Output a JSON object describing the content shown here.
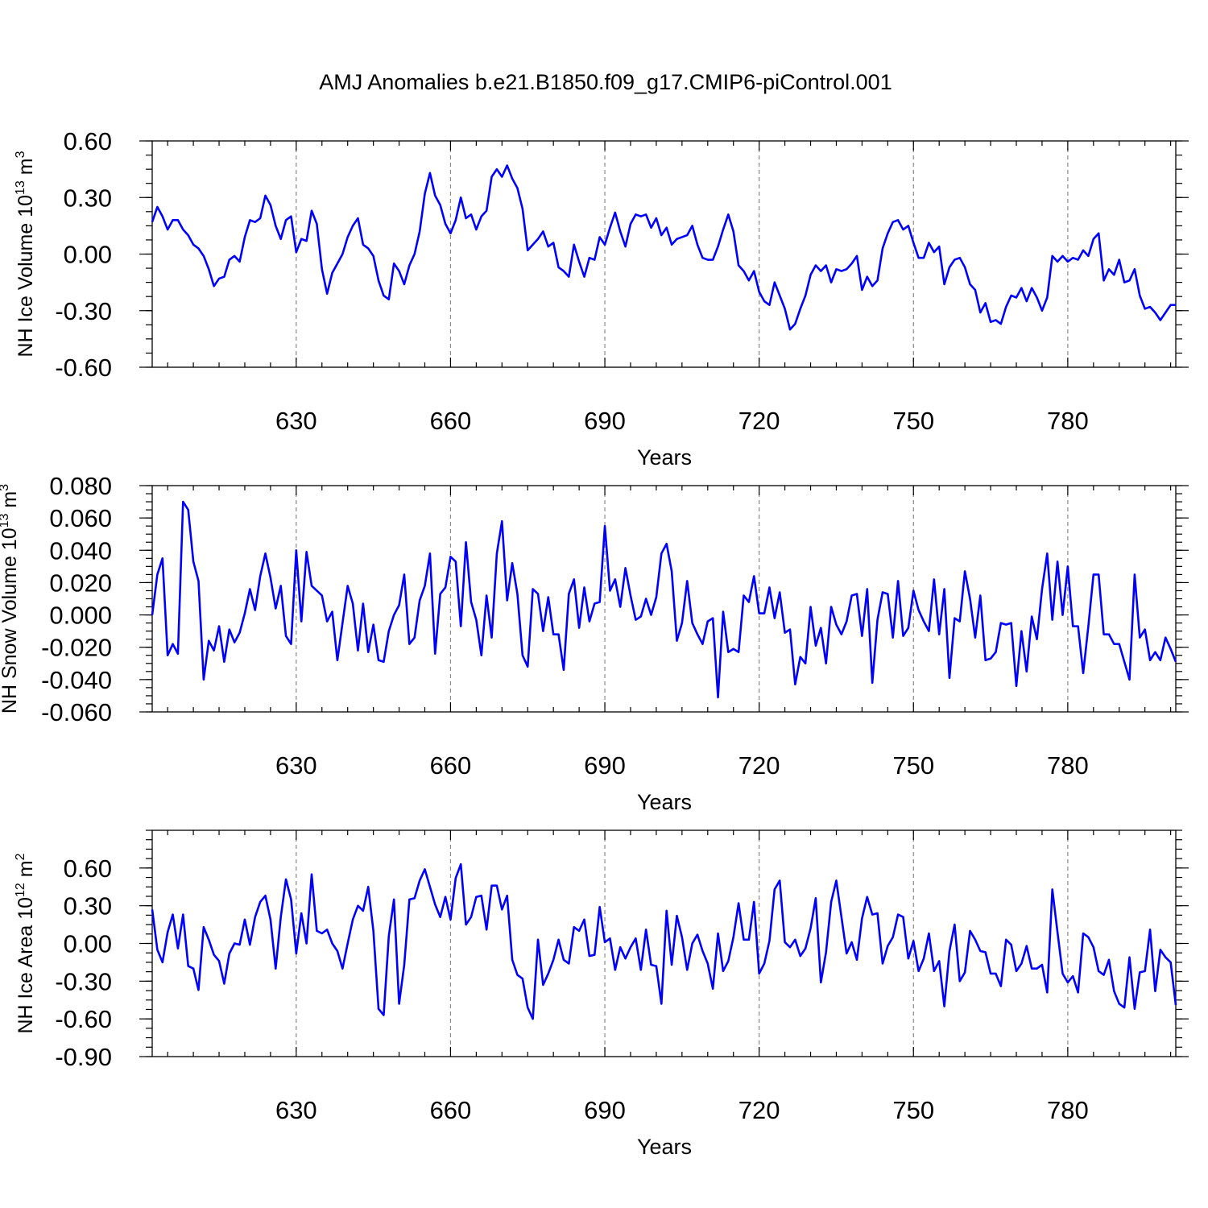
{
  "title": "AMJ Anomalies b.e21.B1850.f09_g17.CMIP6-piControl.001",
  "colors": {
    "line": "#0000ff",
    "grid": "#8a8a8a",
    "axis": "#000000"
  },
  "chart_data": [
    {
      "type": "line",
      "ylabel_main": "NH Ice Volume 10",
      "ylabel_exp": "13",
      "ylabel_unit": " m",
      "ylabel_unit_exp": "3",
      "xlabel": "Years",
      "xlim": [
        602,
        801
      ],
      "ylim": [
        -0.6,
        0.6
      ],
      "xticks": [
        630,
        660,
        690,
        720,
        750,
        780
      ],
      "yticks": [
        0.6,
        0.3,
        0.0,
        -0.3,
        -0.6
      ],
      "yticklabels": [
        "0.60",
        "0.30",
        "0.00",
        "-0.30",
        "-0.60"
      ],
      "yminor": 0.075,
      "series": [
        {
          "x0": 602,
          "values": [
            0.17,
            0.25,
            0.2,
            0.13,
            0.18,
            0.18,
            0.13,
            0.1,
            0.05,
            0.03,
            -0.01,
            -0.08,
            -0.17,
            -0.13,
            -0.12,
            -0.03,
            -0.01,
            -0.04,
            0.09,
            0.18,
            0.17,
            0.19,
            0.31,
            0.26,
            0.15,
            0.08,
            0.18,
            0.2,
            0.01,
            0.08,
            0.07,
            0.23,
            0.16,
            -0.08,
            -0.21,
            -0.1,
            -0.05,
            0.0,
            0.09,
            0.15,
            0.19,
            0.05,
            0.03,
            -0.01,
            -0.14,
            -0.22,
            -0.24,
            -0.05,
            -0.09,
            -0.16,
            -0.06,
            0.0,
            0.12,
            0.32,
            0.43,
            0.31,
            0.26,
            0.16,
            0.11,
            0.18,
            0.3,
            0.19,
            0.21,
            0.13,
            0.2,
            0.23,
            0.41,
            0.45,
            0.41,
            0.47,
            0.4,
            0.35,
            0.24,
            0.02,
            0.05,
            0.08,
            0.12,
            0.04,
            0.06,
            -0.07,
            -0.09,
            -0.12,
            0.05,
            -0.04,
            -0.12,
            -0.02,
            -0.03,
            0.09,
            0.05,
            0.14,
            0.22,
            0.12,
            0.04,
            0.16,
            0.21,
            0.2,
            0.21,
            0.14,
            0.19,
            0.1,
            0.14,
            0.05,
            0.08,
            0.09,
            0.1,
            0.15,
            0.05,
            -0.02,
            -0.03,
            -0.03,
            0.04,
            0.13,
            0.21,
            0.12,
            -0.06,
            -0.09,
            -0.14,
            -0.09,
            -0.2,
            -0.25,
            -0.27,
            -0.15,
            -0.22,
            -0.29,
            -0.4,
            -0.37,
            -0.29,
            -0.22,
            -0.11,
            -0.06,
            -0.09,
            -0.06,
            -0.15,
            -0.08,
            -0.09,
            -0.08,
            -0.05,
            -0.01,
            -0.19,
            -0.12,
            -0.17,
            -0.14,
            0.03,
            0.11,
            0.17,
            0.18,
            0.13,
            0.15,
            0.06,
            -0.02,
            -0.02,
            0.06,
            0.01,
            0.04,
            -0.16,
            -0.07,
            -0.03,
            -0.02,
            -0.07,
            -0.16,
            -0.19,
            -0.31,
            -0.26,
            -0.36,
            -0.35,
            -0.37,
            -0.28,
            -0.22,
            -0.23,
            -0.18,
            -0.25,
            -0.18,
            -0.23,
            -0.3,
            -0.23,
            -0.01,
            -0.04,
            -0.01,
            -0.04,
            -0.02,
            -0.03,
            0.02,
            -0.01,
            0.08,
            0.11,
            -0.14,
            -0.08,
            -0.11,
            -0.03,
            -0.15,
            -0.14,
            -0.08,
            -0.22,
            -0.29,
            -0.28,
            -0.31,
            -0.35,
            -0.31,
            -0.27,
            -0.27
          ]
        }
      ]
    },
    {
      "type": "line",
      "ylabel_main": "NH Snow Volume 10",
      "ylabel_exp": "13",
      "ylabel_unit": " m",
      "ylabel_unit_exp": "3",
      "xlabel": "Years",
      "xlim": [
        602,
        801
      ],
      "ylim": [
        -0.06,
        0.08
      ],
      "xticks": [
        630,
        660,
        690,
        720,
        750,
        780
      ],
      "yticks": [
        0.08,
        0.06,
        0.04,
        0.02,
        0.0,
        -0.02,
        -0.04,
        -0.06
      ],
      "yticklabels": [
        "0.080",
        "0.060",
        "0.040",
        "0.020",
        "0.000",
        "-0.020",
        "-0.040",
        "-0.060"
      ],
      "yminor": 0.005,
      "series": [
        {
          "x0": 602,
          "values": [
            0.0,
            0.025,
            0.035,
            -0.025,
            -0.018,
            -0.024,
            0.07,
            0.065,
            0.033,
            0.021,
            -0.04,
            -0.016,
            -0.022,
            -0.007,
            -0.029,
            -0.009,
            -0.017,
            -0.011,
            0.001,
            0.016,
            0.003,
            0.024,
            0.038,
            0.023,
            0.004,
            0.018,
            -0.013,
            -0.018,
            0.04,
            -0.004,
            0.039,
            0.018,
            0.015,
            0.012,
            -0.004,
            0.002,
            -0.028,
            -0.005,
            0.018,
            0.007,
            -0.022,
            0.007,
            -0.023,
            -0.006,
            -0.028,
            -0.029,
            -0.01,
            0.0,
            0.006,
            0.025,
            -0.018,
            -0.014,
            0.009,
            0.018,
            0.038,
            -0.024,
            0.013,
            0.017,
            0.036,
            0.033,
            -0.007,
            0.045,
            0.008,
            -0.003,
            -0.025,
            0.012,
            -0.014,
            0.038,
            0.058,
            0.009,
            0.032,
            0.013,
            -0.025,
            -0.032,
            0.016,
            0.013,
            -0.01,
            0.011,
            -0.012,
            -0.012,
            -0.034,
            0.013,
            0.022,
            -0.008,
            0.017,
            -0.004,
            0.007,
            0.008,
            0.055,
            0.015,
            0.022,
            0.005,
            0.029,
            0.012,
            -0.003,
            -0.001,
            0.01,
            0.0,
            0.011,
            0.038,
            0.044,
            0.027,
            -0.016,
            -0.005,
            0.021,
            -0.005,
            -0.012,
            -0.018,
            -0.004,
            -0.002,
            -0.051,
            0.002,
            -0.023,
            -0.021,
            -0.023,
            0.012,
            0.008,
            0.024,
            0.001,
            0.001,
            0.017,
            -0.002,
            0.014,
            -0.011,
            -0.009,
            -0.043,
            -0.026,
            -0.03,
            0.005,
            -0.019,
            -0.008,
            -0.03,
            0.005,
            -0.006,
            -0.012,
            -0.004,
            0.012,
            0.013,
            -0.013,
            0.016,
            -0.042,
            -0.003,
            0.014,
            0.013,
            -0.014,
            0.021,
            -0.013,
            -0.008,
            0.015,
            0.003,
            -0.004,
            -0.01,
            0.022,
            -0.012,
            0.016,
            -0.039,
            -0.002,
            -0.004,
            0.027,
            0.01,
            -0.014,
            0.012,
            -0.028,
            -0.027,
            -0.023,
            -0.005,
            -0.006,
            -0.005,
            -0.044,
            -0.01,
            -0.035,
            -0.001,
            -0.015,
            0.016,
            0.038,
            -0.003,
            0.033,
            0.0,
            0.03,
            -0.007,
            -0.007,
            -0.036,
            -0.007,
            0.025,
            0.025,
            -0.012,
            -0.012,
            -0.018,
            -0.018,
            -0.029,
            -0.04,
            0.025,
            -0.014,
            -0.009,
            -0.028,
            -0.023,
            -0.028,
            -0.014,
            -0.021,
            -0.029
          ]
        }
      ]
    },
    {
      "type": "line",
      "ylabel_main": "NH Ice Area 10",
      "ylabel_exp": "12",
      "ylabel_unit": " m",
      "ylabel_unit_exp": "2",
      "xlabel": "Years",
      "xlim": [
        602,
        801
      ],
      "ylim": [
        -0.9,
        0.9
      ],
      "xticks": [
        630,
        660,
        690,
        720,
        750,
        780
      ],
      "yticks": [
        0.6,
        0.3,
        0.0,
        -0.3,
        -0.6,
        -0.9
      ],
      "yticklabels": [
        "0.60",
        "0.30",
        "0.00",
        "-0.30",
        "-0.60",
        "-0.90"
      ],
      "yminor": 0.075,
      "series": [
        {
          "x0": 602,
          "values": [
            0.27,
            -0.05,
            -0.15,
            0.09,
            0.23,
            -0.04,
            0.23,
            -0.18,
            -0.2,
            -0.37,
            0.13,
            0.03,
            -0.09,
            -0.14,
            -0.32,
            -0.08,
            0.0,
            -0.01,
            0.19,
            -0.01,
            0.21,
            0.33,
            0.38,
            0.19,
            -0.2,
            0.21,
            0.51,
            0.35,
            -0.08,
            0.24,
            0.0,
            0.55,
            0.1,
            0.08,
            0.11,
            0.0,
            -0.06,
            -0.2,
            0.0,
            0.19,
            0.3,
            0.26,
            0.45,
            0.1,
            -0.52,
            -0.57,
            0.06,
            0.35,
            -0.48,
            -0.17,
            0.35,
            0.36,
            0.5,
            0.59,
            0.45,
            0.31,
            0.21,
            0.37,
            0.19,
            0.52,
            0.63,
            0.15,
            0.21,
            0.37,
            0.38,
            0.11,
            0.46,
            0.46,
            0.27,
            0.38,
            -0.13,
            -0.25,
            -0.28,
            -0.51,
            -0.6,
            0.03,
            -0.33,
            -0.24,
            -0.13,
            0.03,
            -0.13,
            -0.16,
            0.13,
            0.1,
            0.19,
            -0.1,
            -0.09,
            0.29,
            0.01,
            0.04,
            -0.21,
            -0.03,
            -0.12,
            -0.03,
            0.04,
            -0.21,
            0.11,
            -0.17,
            -0.18,
            -0.48,
            0.26,
            -0.17,
            0.22,
            0.05,
            -0.21,
            0.0,
            0.07,
            -0.06,
            -0.16,
            -0.36,
            0.08,
            -0.22,
            -0.14,
            0.05,
            0.32,
            0.03,
            0.03,
            0.33,
            -0.24,
            -0.16,
            0.02,
            0.43,
            0.5,
            0.01,
            -0.03,
            0.03,
            -0.1,
            -0.04,
            0.12,
            0.36,
            -0.31,
            -0.07,
            0.33,
            0.5,
            0.21,
            -0.08,
            0.01,
            -0.13,
            0.2,
            0.37,
            0.23,
            0.24,
            -0.16,
            -0.02,
            0.05,
            0.23,
            0.21,
            -0.12,
            0.02,
            -0.22,
            -0.12,
            0.08,
            -0.22,
            -0.14,
            -0.5,
            -0.06,
            0.15,
            -0.3,
            -0.23,
            0.1,
            0.03,
            -0.06,
            -0.07,
            -0.24,
            -0.24,
            -0.34,
            0.03,
            -0.01,
            -0.22,
            -0.16,
            -0.02,
            -0.2,
            -0.2,
            -0.17,
            -0.39,
            0.43,
            0.09,
            -0.24,
            -0.31,
            -0.26,
            -0.39,
            0.08,
            0.05,
            -0.03,
            -0.22,
            -0.25,
            -0.13,
            -0.38,
            -0.48,
            -0.51,
            -0.11,
            -0.52,
            -0.23,
            -0.22,
            0.11,
            -0.38,
            -0.05,
            -0.11,
            -0.15,
            -0.49
          ]
        }
      ]
    }
  ]
}
